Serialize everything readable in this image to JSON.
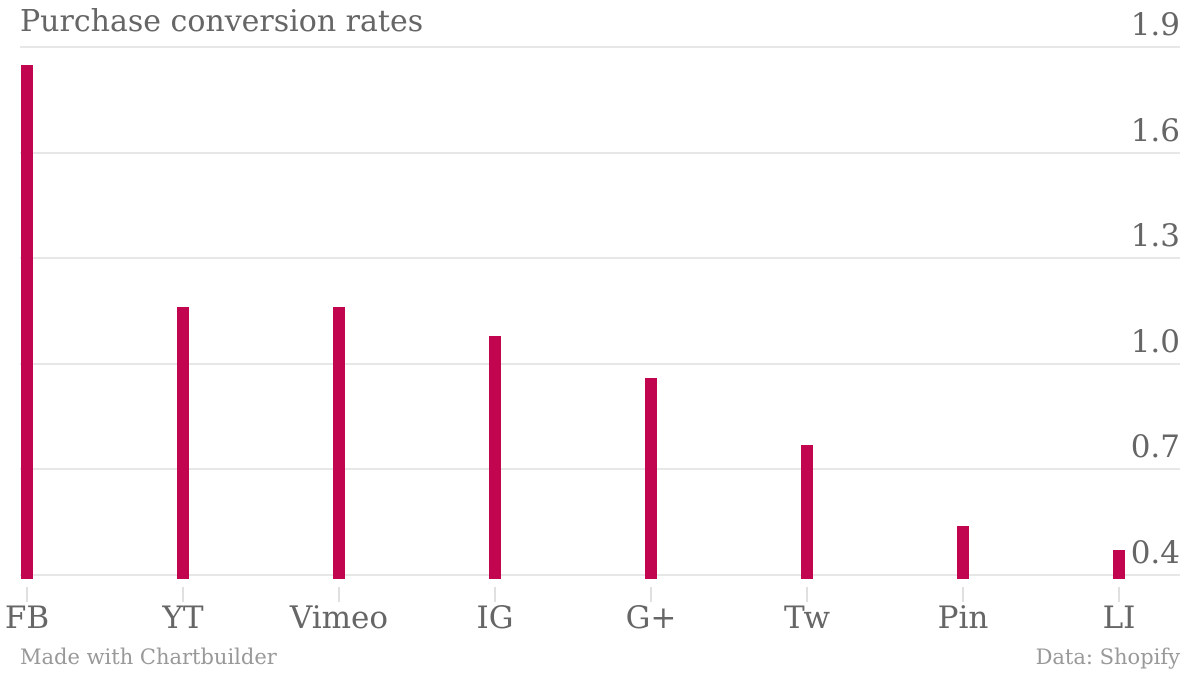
{
  "chart_data": {
    "type": "bar",
    "title": "Purchase conversion rates",
    "categories": [
      "FB",
      "YT",
      "Vimeo",
      "IG",
      "G+",
      "Tw",
      "Pin",
      "LI"
    ],
    "values": [
      1.85,
      1.16,
      1.16,
      1.08,
      0.96,
      0.77,
      0.54,
      0.47
    ],
    "xlabel": "",
    "ylabel": "",
    "ylim": [
      0.4,
      1.9
    ],
    "yticks": [
      {
        "label": "1.9",
        "value": 1.9
      },
      {
        "label": "1.6",
        "value": 1.6
      },
      {
        "label": "1.3",
        "value": 1.3
      },
      {
        "label": "1.0",
        "value": 1.0
      },
      {
        "label": "0.7",
        "value": 0.7
      },
      {
        "label": "0.4",
        "value": 0.4
      }
    ],
    "grid": "horizontal",
    "legend": false,
    "credit": "Made with Chartbuilder",
    "source": "Data: Shopify",
    "colors": {
      "bar": "#c1064f",
      "gridline": "#e7e7e7",
      "axis_tick": "#e0e0e0",
      "label_text": "#666666",
      "footer_text": "#999999",
      "background": "#ffffff"
    }
  }
}
